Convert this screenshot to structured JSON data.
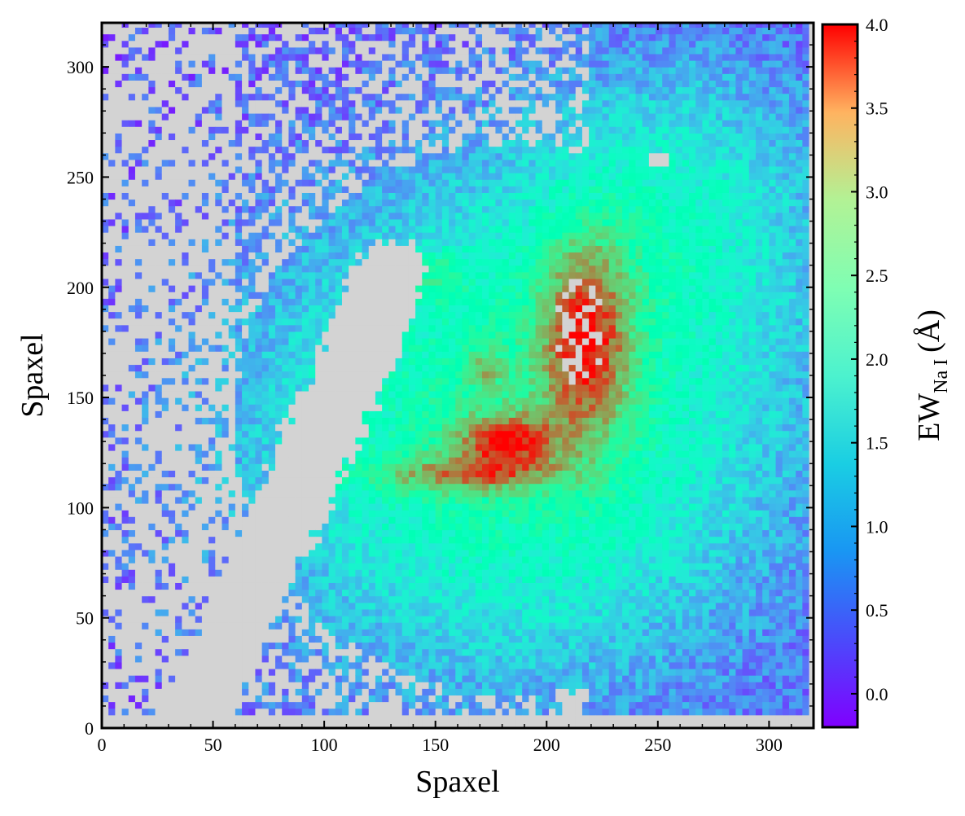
{
  "chart_data": {
    "type": "heatmap",
    "title": "",
    "xlabel": "Spaxel",
    "ylabel": "Spaxel",
    "xlim": [
      0,
      320
    ],
    "ylim": [
      0,
      320
    ],
    "x_ticks": [
      0,
      50,
      100,
      150,
      200,
      250,
      300
    ],
    "y_ticks": [
      0,
      50,
      100,
      150,
      200,
      250,
      300
    ],
    "grid_cell_size": 3,
    "colorbar": {
      "label": "EW",
      "label_subscript": "Na I",
      "label_unit": "(Å)",
      "colormap": "rainbow",
      "range": [
        -0.2,
        4.0
      ],
      "ticks": [
        0.0,
        0.5,
        1.0,
        1.5,
        2.0,
        2.5,
        3.0,
        3.5,
        4.0
      ],
      "tick_labels": [
        "0.0",
        "0.5",
        "1.0",
        "1.5",
        "2.0",
        "2.5",
        "3.0",
        "3.5",
        "4.0"
      ]
    },
    "masked_color": "#d3d3d3",
    "features": [
      {
        "description": "masked diagonal lane",
        "from": [
          40,
          0
        ],
        "to": [
          130,
          205
        ],
        "half_width": 14
      },
      {
        "description": "high-EW ring region (east)",
        "center": [
          215,
          175
        ],
        "ew": 3.8
      },
      {
        "description": "high-EW region (south of center)",
        "center": [
          180,
          130
        ],
        "ew": 3.7
      },
      {
        "description": "high-EW arc",
        "center": [
          165,
          115
        ],
        "ew": 3.2
      },
      {
        "description": "background disk",
        "center": [
          185,
          135
        ],
        "ew_peak": 2.0
      }
    ]
  }
}
